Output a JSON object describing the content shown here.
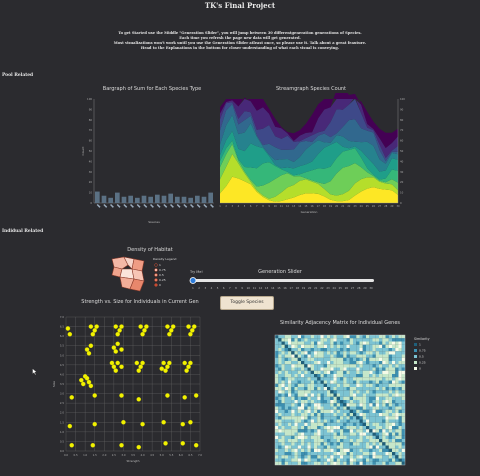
{
  "header": {
    "title": "TK's Final Project",
    "intro": [
      "To get Started use the Middle \"Generation Slider\", you will jump between 30 differentgeneration generations of Species.",
      "Each time you refresh the page new data will get generated.",
      "Most visualizations won't work until you use the Generation Slider atleast once, so please use it. Talk about a great feauture.",
      "Head to the Explanations in the bottom for closer understanding of what each visual is conveying."
    ]
  },
  "sections": {
    "pool": "Pool Related",
    "individual": "Indidual Related"
  },
  "bargraph": {
    "title": "Bargraph of Sum for Each Species Type",
    "ylabel": "Count",
    "xlabel": "Species"
  },
  "streamgraph": {
    "title": "Streamgraph Species Count",
    "xlabel": "Generation"
  },
  "density": {
    "title": "Density of Habitat",
    "legend_title": "Density Legend",
    "legend_values": [
      "1",
      "0.75",
      "0.5",
      "0.25",
      "0"
    ]
  },
  "slider": {
    "label": "Generation Slider",
    "try_me": "Try Me!",
    "ticks": [
      "1",
      "2",
      "3",
      "4",
      "5",
      "6",
      "7",
      "8",
      "9",
      "10",
      "11",
      "12",
      "13",
      "14",
      "15",
      "16",
      "17",
      "18",
      "19",
      "20",
      "21",
      "22",
      "23",
      "24",
      "25",
      "26",
      "27",
      "28",
      "29",
      "30"
    ]
  },
  "toggle_button": "Toggle Species",
  "scatter": {
    "title": "Strength vs. Size for Individuals in Current Gen",
    "xlabel": "Strength",
    "ylabel": "Size"
  },
  "matrix": {
    "title": "Similarity Adjacency Matrix for Individual Genes",
    "legend_title": "Similarity",
    "legend_values": [
      "1",
      "0.75",
      "0.5",
      "0.25",
      "0"
    ]
  },
  "colors": {
    "background": "#2b2b2f",
    "bar": "#5b7184",
    "scatter_point": "#f2f200",
    "toggle_bg": "#efe3d0"
  },
  "chart_data": [
    {
      "type": "bar",
      "title": "Bargraph of Sum for Each Species Type",
      "xlabel": "Species",
      "ylabel": "Count",
      "ylim": [
        0,
        100
      ],
      "y_ticks": [
        0,
        10,
        20,
        30,
        40,
        50,
        60,
        70,
        80,
        90,
        100
      ],
      "values": [
        11,
        7,
        5,
        10,
        6,
        7,
        5,
        7,
        6,
        8,
        7,
        9,
        6,
        6,
        5,
        7,
        6,
        10
      ]
    },
    {
      "type": "area",
      "title": "Streamgraph Species Count",
      "xlabel": "Generation",
      "x": [
        1,
        2,
        3,
        4,
        5,
        6,
        7,
        8,
        9,
        10,
        11,
        12,
        13,
        14,
        15,
        16,
        17,
        18,
        19,
        20,
        21,
        22,
        23,
        24,
        25,
        26,
        27,
        28,
        29,
        30
      ],
      "y_ticks": [
        0,
        10,
        20,
        30,
        40,
        50,
        60,
        70,
        80,
        90,
        100
      ]
    },
    {
      "type": "scatter",
      "title": "Strength vs. Size for Individuals in Current Gen",
      "xlabel": "Strength",
      "ylabel": "Size",
      "xlim": [
        0,
        7
      ],
      "ylim": [
        0,
        7
      ],
      "x_ticks": [
        "0.0",
        "0.5",
        "1.0",
        "1.5",
        "2.0",
        "2.5",
        "3.0",
        "3.5",
        "4.0",
        "4.5",
        "5.0",
        "5.5",
        "6.0",
        "6.5",
        "7.0"
      ],
      "y_ticks": [
        "0.0",
        "0.5",
        "1.0",
        "1.5",
        "2.0",
        "2.5",
        "3.0",
        "3.5",
        "4.0",
        "4.5",
        "5.0",
        "5.5",
        "6.0",
        "6.5",
        "7.0"
      ],
      "points": [
        [
          0.3,
          0.3
        ],
        [
          1.4,
          0.3
        ],
        [
          2.9,
          0.3
        ],
        [
          3.8,
          0.2
        ],
        [
          5.2,
          0.4
        ],
        [
          6.1,
          0.4
        ],
        [
          6.8,
          0.3
        ],
        [
          0.2,
          1.3
        ],
        [
          1.5,
          1.4
        ],
        [
          3.0,
          1.5
        ],
        [
          4.0,
          1.4
        ],
        [
          5.1,
          1.5
        ],
        [
          6.1,
          1.4
        ],
        [
          6.5,
          1.5
        ],
        [
          0.3,
          2.8
        ],
        [
          1.5,
          2.9
        ],
        [
          2.9,
          2.9
        ],
        [
          3.8,
          2.7
        ],
        [
          5.3,
          2.9
        ],
        [
          6.2,
          2.8
        ],
        [
          6.8,
          2.9
        ],
        [
          0.8,
          3.7
        ],
        [
          1.0,
          3.9
        ],
        [
          1.2,
          3.6
        ],
        [
          0.9,
          3.5
        ],
        [
          1.1,
          3.8
        ],
        [
          1.3,
          3.4
        ],
        [
          2.5,
          4.4
        ],
        [
          2.7,
          4.6
        ],
        [
          2.6,
          4.2
        ],
        [
          2.9,
          4.4
        ],
        [
          2.4,
          4.6
        ],
        [
          3.7,
          4.6
        ],
        [
          3.9,
          4.4
        ],
        [
          3.8,
          4.2
        ],
        [
          4.0,
          4.6
        ],
        [
          5.1,
          4.6
        ],
        [
          5.3,
          4.4
        ],
        [
          5.2,
          4.2
        ],
        [
          5.4,
          4.6
        ],
        [
          5.0,
          4.3
        ],
        [
          6.2,
          4.6
        ],
        [
          6.4,
          4.4
        ],
        [
          6.3,
          4.2
        ],
        [
          6.5,
          4.6
        ],
        [
          1.1,
          5.3
        ],
        [
          1.3,
          5.5
        ],
        [
          1.2,
          5.1
        ],
        [
          2.5,
          5.4
        ],
        [
          2.7,
          5.6
        ],
        [
          2.9,
          5.3
        ],
        [
          2.6,
          5.2
        ],
        [
          0.1,
          6.4
        ],
        [
          0.2,
          6.1
        ],
        [
          1.3,
          6.5
        ],
        [
          1.5,
          6.3
        ],
        [
          1.4,
          6.1
        ],
        [
          1.6,
          6.5
        ],
        [
          2.6,
          6.5
        ],
        [
          2.8,
          6.3
        ],
        [
          2.7,
          6.1
        ],
        [
          2.9,
          6.5
        ],
        [
          3.9,
          6.5
        ],
        [
          4.1,
          6.3
        ],
        [
          4.0,
          6.1
        ],
        [
          4.2,
          6.5
        ],
        [
          5.3,
          6.5
        ],
        [
          5.5,
          6.3
        ],
        [
          5.4,
          6.1
        ],
        [
          5.6,
          6.5
        ],
        [
          6.4,
          6.5
        ],
        [
          6.6,
          6.3
        ],
        [
          6.5,
          6.1
        ],
        [
          6.7,
          6.5
        ]
      ]
    },
    {
      "type": "heatmap",
      "title": "Similarity Adjacency Matrix for Individual Genes",
      "legend": [
        "1",
        "0.75",
        "0.5",
        "0.25",
        "0"
      ]
    }
  ]
}
